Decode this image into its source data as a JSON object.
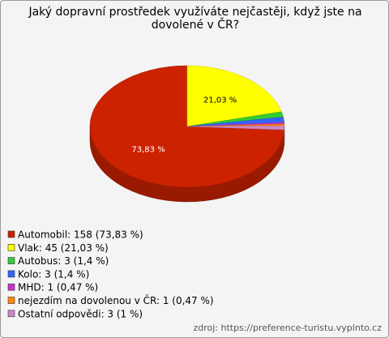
{
  "chart_data": {
    "type": "pie",
    "title": "Jaký dopravní prostředek využíváte nejčastěji, když jste na dovolené v ČR?",
    "categories": [
      "Automobil: 158 (73,83 %)",
      "Vlak: 45 (21,03 %)",
      "Autobus: 3 (1,4 %)",
      "Kolo: 3 (1,4 %)",
      "MHD: 1 (0,47 %)",
      "nejezdím na dovolenou v ČR: 1 (0,47 %)",
      "Ostatní odpovědi: 3 (1 %)"
    ],
    "values": [
      73.83,
      21.03,
      1.4,
      1.4,
      0.47,
      0.47,
      1
    ],
    "value_labels": [
      "73,83 %",
      "21,03 %",
      null,
      null,
      null,
      null,
      null
    ],
    "colors": [
      "#cc2200",
      "#ffff00",
      "#33cc33",
      "#3366ff",
      "#cc33cc",
      "#ff8800",
      "#cc88cc"
    ],
    "source": "zdroj: https://preference-turistu.vyplnto.cz"
  }
}
